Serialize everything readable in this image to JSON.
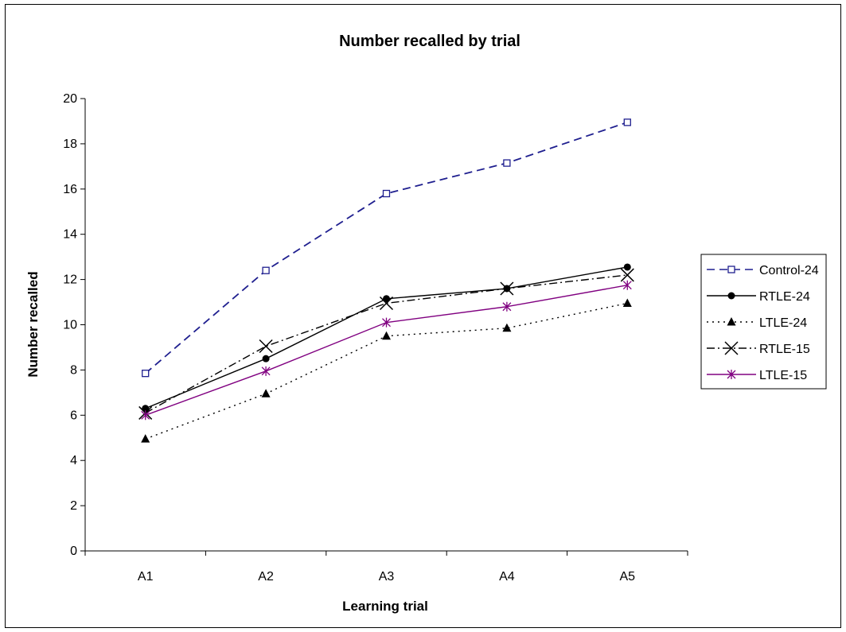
{
  "chart_data": {
    "type": "line",
    "title": "Number recalled by trial",
    "xlabel": "Learning trial",
    "ylabel": "Number recalled",
    "categories": [
      "A1",
      "A2",
      "A3",
      "A4",
      "A5"
    ],
    "ylim": [
      0,
      20
    ],
    "yticks": [
      "0",
      "2",
      "4",
      "6",
      "8",
      "10",
      "12",
      "14",
      "16",
      "18",
      "20"
    ],
    "grid": false,
    "legend_position": "right",
    "series": [
      {
        "name": "Control-24",
        "values": [
          7.85,
          12.4,
          15.8,
          17.15,
          18.95
        ],
        "color": "#1f1f8f",
        "marker": "square-open",
        "dash": "dashed"
      },
      {
        "name": "RTLE-24",
        "values": [
          6.3,
          8.5,
          11.15,
          11.6,
          12.55
        ],
        "color": "#000000",
        "marker": "circle",
        "dash": "solid"
      },
      {
        "name": "LTLE-24",
        "values": [
          4.95,
          6.95,
          9.5,
          9.85,
          10.95
        ],
        "color": "#000000",
        "marker": "triangle",
        "dash": "dotted"
      },
      {
        "name": "RTLE-15",
        "values": [
          6.1,
          9.05,
          10.95,
          11.6,
          12.2
        ],
        "color": "#000000",
        "marker": "x",
        "dash": "dashdot"
      },
      {
        "name": "LTLE-15",
        "values": [
          6.0,
          7.95,
          10.1,
          10.8,
          11.75
        ],
        "color": "#800080",
        "marker": "asterisk",
        "dash": "solid"
      }
    ]
  }
}
